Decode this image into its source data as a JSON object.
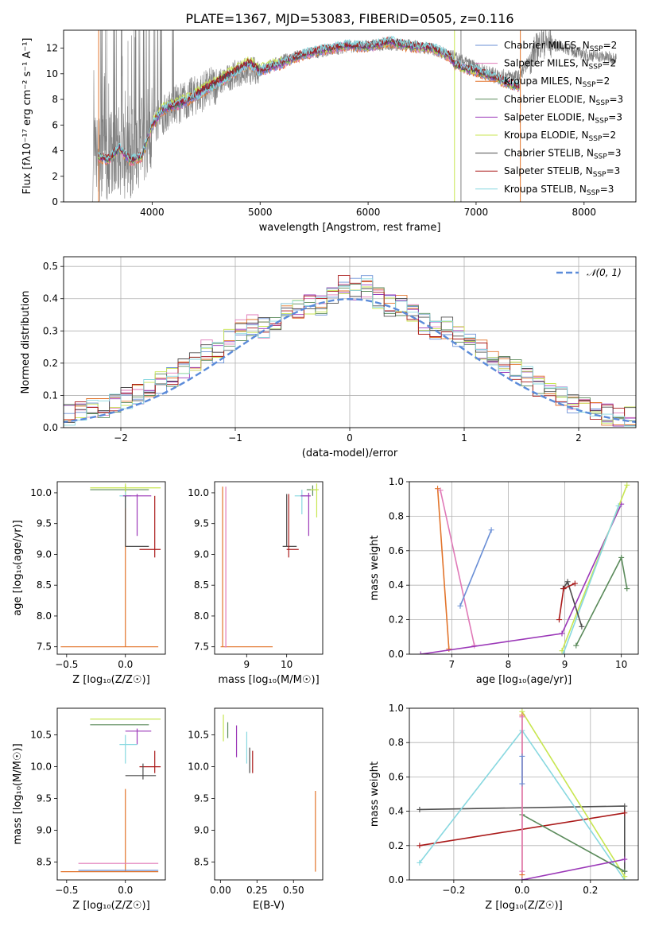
{
  "figure": {
    "suptitle": "PLATE=1367, MJD=53083, FIBERID=0505, z=0.116"
  },
  "colors": {
    "chabrier_miles": "#6a8fd6",
    "salpeter_miles": "#e07ab8",
    "kroupa_miles": "#e2742b",
    "chabrier_elodie": "#5a8a5a",
    "salpeter_elodie": "#9b38b8",
    "kroupa_elodie": "#c8e650",
    "chabrier_stelib": "#4d4d4d",
    "salpeter_stelib": "#aa1a1a",
    "kroupa_stelib": "#88d8e0",
    "data": "#808080",
    "normal": "#5b8bd9",
    "grid": "#b0b0b0"
  },
  "chart_data": [
    {
      "id": "spectrum",
      "type": "line",
      "xlabel": "wavelength [Angstrom, rest frame]",
      "ylabel": "Flux [fλ10⁻¹⁷ erg cm⁻² s⁻¹ A⁻¹]",
      "xlim": [
        3180,
        8480
      ],
      "ylim": [
        0,
        13.4
      ],
      "xticks": [
        4000,
        5000,
        6000,
        7000,
        8000
      ],
      "yticks": [
        0,
        2,
        4,
        6,
        8,
        10,
        12
      ],
      "grid": false,
      "legend_position": "top-right",
      "legend": [
        {
          "label": "Chabrier MILES, N",
          "sub": "SSP",
          "tail": "=2",
          "color_key": "chabrier_miles"
        },
        {
          "label": "Salpeter MILES, N",
          "sub": "SSP",
          "tail": "=2",
          "color_key": "salpeter_miles"
        },
        {
          "label": "Kroupa MILES, N",
          "sub": "SSP",
          "tail": "=2",
          "color_key": "kroupa_miles"
        },
        {
          "label": "Chabrier ELODIE, N",
          "sub": "SSP",
          "tail": "=3",
          "color_key": "chabrier_elodie"
        },
        {
          "label": "Salpeter ELODIE, N",
          "sub": "SSP",
          "tail": "=3",
          "color_key": "salpeter_elodie"
        },
        {
          "label": "Kroupa ELODIE, N",
          "sub": "SSP",
          "tail": "=2",
          "color_key": "kroupa_elodie"
        },
        {
          "label": "Chabrier STELIB, N",
          "sub": "SSP",
          "tail": "=3",
          "color_key": "chabrier_stelib"
        },
        {
          "label": "Salpeter STELIB, N",
          "sub": "SSP",
          "tail": "=3",
          "color_key": "salpeter_stelib"
        },
        {
          "label": "Kroupa STELIB, N",
          "sub": "SSP",
          "tail": "=3",
          "color_key": "kroupa_stelib"
        }
      ],
      "model_continuum": {
        "x": [
          3500,
          3600,
          3700,
          3800,
          3900,
          4000,
          4100,
          4300,
          4500,
          4700,
          4900,
          5000,
          5200,
          5400,
          5600,
          5800,
          6000,
          6200,
          6400,
          6600,
          6760,
          6800,
          6900,
          7000,
          7100,
          7200,
          7300,
          7400
        ],
        "y": [
          3.5,
          3.3,
          4.2,
          3.2,
          3.5,
          6.0,
          7.2,
          7.8,
          8.8,
          9.8,
          10.8,
          10.2,
          10.8,
          11.5,
          11.9,
          12.2,
          12.1,
          12.5,
          12.1,
          12.0,
          11.3,
          10.7,
          10.4,
          10.2,
          9.9,
          9.6,
          9.2,
          9.0
        ]
      },
      "data_continuum": {
        "x": [
          3450,
          3600,
          3800,
          4000,
          4200,
          4400,
          4600,
          4800,
          5000,
          5200,
          5400,
          5600,
          5800,
          6000,
          6200,
          6400,
          6600,
          6800,
          7000,
          7200,
          7400,
          7600,
          7800,
          8000,
          8200,
          8300
        ],
        "y": [
          3.5,
          3.6,
          3.6,
          6.0,
          7.5,
          8.3,
          9.2,
          10.1,
          10.3,
          11.0,
          11.5,
          11.8,
          12.1,
          12.2,
          12.3,
          12.2,
          11.9,
          11.3,
          10.5,
          9.9,
          9.8,
          12.5,
          12.1,
          11.5,
          11.3,
          11.2
        ]
      }
    },
    {
      "id": "residuals",
      "type": "line",
      "xlabel": "(data-model)/error",
      "ylabel": "Normed distribution",
      "xlim": [
        -2.5,
        2.5
      ],
      "ylim": [
        0,
        0.53
      ],
      "xticks": [
        -2,
        -1,
        0,
        1,
        2
      ],
      "yticks": [
        0.0,
        0.1,
        0.2,
        0.3,
        0.4,
        0.5
      ],
      "grid": true,
      "legend": [
        "𝒩(0, 1)"
      ],
      "legend_position": "top-right",
      "histogram_base": [
        0.02,
        0.02,
        0.03,
        0.04,
        0.05,
        0.06,
        0.06,
        0.08,
        0.09,
        0.1,
        0.12,
        0.14,
        0.16,
        0.18,
        0.2,
        0.24,
        0.23,
        0.27,
        0.3,
        0.32,
        0.31,
        0.33,
        0.36,
        0.37,
        0.38,
        0.38,
        0.42,
        0.45,
        0.43,
        0.44,
        0.4,
        0.38,
        0.38,
        0.35,
        0.32,
        0.3,
        0.31,
        0.28,
        0.27,
        0.24,
        0.22,
        0.2,
        0.18,
        0.16,
        0.13,
        0.11,
        0.1,
        0.08,
        0.07,
        0.05,
        0.04,
        0.03,
        0.03,
        0.02,
        0.02,
        0.02
      ],
      "normal_curve": {
        "mean": 0,
        "sigma": 1
      }
    },
    {
      "id": "age_vs_Z",
      "type": "scatter",
      "xlabel": "Z [log₁₀(Z/Z☉)]",
      "ylabel": "age  [log₁₀(age/yr)]",
      "xlim": [
        -0.58,
        0.34
      ],
      "ylim": [
        7.38,
        10.18
      ],
      "xticks": [
        -0.5,
        0.0
      ],
      "xticklabels": [
        "−0.5",
        "0.0"
      ],
      "yticks": [
        7.5,
        8.0,
        8.5,
        9.0,
        9.5,
        10.0
      ],
      "points": [
        {
          "c": "kroupa_miles",
          "x": 0.0,
          "y": 7.5,
          "xlo": -0.55,
          "xhi": 0.28,
          "ylo": 7.5,
          "yhi": 10.05
        },
        {
          "c": "chabrier_elodie",
          "x": 0.0,
          "y": 10.05,
          "xlo": -0.3,
          "xhi": 0.2,
          "ylo": 9.95,
          "yhi": 10.12
        },
        {
          "c": "kroupa_elodie",
          "x": 0.0,
          "y": 10.08,
          "xlo": -0.3,
          "xhi": 0.3,
          "ylo": 9.9,
          "yhi": 10.15
        },
        {
          "c": "kroupa_stelib",
          "x": 0.0,
          "y": 9.95,
          "xlo": -0.05,
          "xhi": 0.05,
          "ylo": 9.75,
          "yhi": 10.02
        },
        {
          "c": "salpeter_elodie",
          "x": 0.1,
          "y": 9.95,
          "xlo": -0.02,
          "xhi": 0.22,
          "ylo": 9.3,
          "yhi": 9.98
        },
        {
          "c": "chabrier_stelib",
          "x": 0.0,
          "y": 9.13,
          "xlo": 0.0,
          "xhi": 0.2,
          "ylo": 9.13,
          "yhi": 9.95
        },
        {
          "c": "salpeter_stelib",
          "x": 0.25,
          "y": 9.08,
          "xlo": 0.12,
          "xhi": 0.3,
          "ylo": 8.95,
          "yhi": 9.95
        }
      ]
    },
    {
      "id": "age_vs_mass",
      "type": "scatter",
      "xlabel": "mass [log₁₀(M/M☉)]",
      "xlim": [
        8.2,
        10.9
      ],
      "ylim": [
        7.38,
        10.18
      ],
      "xticks": [
        9,
        10
      ],
      "yticks": [
        7.5,
        8.0,
        8.5,
        9.0,
        9.5,
        10.0
      ],
      "points": [
        {
          "c": "kroupa_miles",
          "x": 8.4,
          "y": 7.5,
          "xlo": 8.35,
          "xhi": 9.65,
          "ylo": 7.5,
          "yhi": 10.1
        },
        {
          "c": "salpeter_miles",
          "x": 8.48,
          "y": 7.5,
          "xlo": 8.45,
          "xhi": 8.5,
          "ylo": 7.5,
          "yhi": 10.1
        },
        {
          "c": "chabrier_stelib",
          "x": 10.0,
          "y": 9.13,
          "xlo": 9.9,
          "xhi": 10.25,
          "ylo": 9.13,
          "yhi": 9.98
        },
        {
          "c": "salpeter_stelib",
          "x": 10.05,
          "y": 9.08,
          "xlo": 10.0,
          "xhi": 10.3,
          "ylo": 8.95,
          "yhi": 9.98
        },
        {
          "c": "kroupa_stelib",
          "x": 10.38,
          "y": 9.95,
          "xlo": 10.2,
          "xhi": 10.55,
          "ylo": 9.65,
          "yhi": 10.05
        },
        {
          "c": "salpeter_elodie",
          "x": 10.55,
          "y": 9.95,
          "xlo": 10.35,
          "xhi": 10.6,
          "ylo": 9.3,
          "yhi": 10.0
        },
        {
          "c": "chabrier_elodie",
          "x": 10.65,
          "y": 10.05,
          "xlo": 10.5,
          "xhi": 10.75,
          "ylo": 9.95,
          "yhi": 10.12
        },
        {
          "c": "kroupa_elodie",
          "x": 10.75,
          "y": 10.05,
          "xlo": 10.6,
          "xhi": 10.8,
          "ylo": 9.6,
          "yhi": 10.15
        }
      ]
    },
    {
      "id": "weight_vs_age",
      "type": "line",
      "xlabel": "age  [log₁₀(age/yr)]",
      "ylabel": "mass weight",
      "xlim": [
        6.25,
        10.3
      ],
      "ylim": [
        0,
        1
      ],
      "xticks": [
        7,
        8,
        9,
        10
      ],
      "yticks": [
        0.0,
        0.2,
        0.4,
        0.6,
        0.8,
        1.0
      ],
      "grid": true,
      "series": [
        {
          "c": "kroupa_miles",
          "x": [
            6.75,
            6.95
          ],
          "y": [
            0.96,
            0.03
          ]
        },
        {
          "c": "salpeter_miles",
          "x": [
            6.8,
            7.4
          ],
          "y": [
            0.95,
            0.05
          ]
        },
        {
          "c": "chabrier_miles",
          "x": [
            7.15,
            7.7
          ],
          "y": [
            0.28,
            0.72
          ]
        },
        {
          "c": "salpeter_elodie",
          "x": [
            6.45,
            8.95,
            10.0
          ],
          "y": [
            0.0,
            0.12,
            0.87
          ]
        },
        {
          "c": "kroupa_elodie",
          "x": [
            8.95,
            10.1
          ],
          "y": [
            0.02,
            0.98
          ]
        },
        {
          "c": "kroupa_stelib",
          "x": [
            8.97,
            9.95
          ],
          "y": [
            0.0,
            0.86
          ]
        },
        {
          "c": "chabrier_elodie",
          "x": [
            9.2,
            10.0,
            10.1
          ],
          "y": [
            0.05,
            0.56,
            0.38
          ]
        },
        {
          "c": "chabrier_stelib",
          "x": [
            8.97,
            9.05,
            9.3
          ],
          "y": [
            0.38,
            0.42,
            0.16
          ]
        },
        {
          "c": "salpeter_stelib",
          "x": [
            8.9,
            8.98,
            9.18
          ],
          "y": [
            0.2,
            0.38,
            0.41
          ]
        }
      ]
    },
    {
      "id": "mass_vs_Z",
      "type": "scatter",
      "xlabel": "Z [log₁₀(Z/Z☉)]",
      "ylabel": "mass [log₁₀(M/M☉)]",
      "xlim": [
        -0.58,
        0.34
      ],
      "ylim": [
        8.22,
        10.92
      ],
      "xticks": [
        -0.5,
        0.0
      ],
      "xticklabels": [
        "−0.5",
        "0.0"
      ],
      "yticks": [
        8.5,
        9.0,
        9.5,
        10.0,
        10.5
      ],
      "points": [
        {
          "c": "kroupa_miles",
          "x": 0.0,
          "y": 8.35,
          "xlo": -0.55,
          "xhi": 0.28,
          "ylo": 8.35,
          "yhi": 9.65
        },
        {
          "c": "chabrier_miles",
          "x": 0.0,
          "y": 8.37,
          "xlo": -0.4,
          "xhi": 0.28,
          "ylo": 8.37,
          "yhi": 8.37
        },
        {
          "c": "salpeter_miles",
          "x": 0.0,
          "y": 8.48,
          "xlo": -0.4,
          "xhi": 0.28,
          "ylo": 8.48,
          "yhi": 8.48
        },
        {
          "c": "kroupa_elodie",
          "x": 0.1,
          "y": 10.75,
          "xlo": -0.3,
          "xhi": 0.3,
          "ylo": 10.75,
          "yhi": 10.75
        },
        {
          "c": "chabrier_elodie",
          "x": 0.05,
          "y": 10.66,
          "xlo": -0.3,
          "xhi": 0.2,
          "ylo": 10.66,
          "yhi": 10.66
        },
        {
          "c": "salpeter_elodie",
          "x": 0.1,
          "y": 10.56,
          "xlo": 0.0,
          "xhi": 0.22,
          "ylo": 10.35,
          "yhi": 10.6
        },
        {
          "c": "kroupa_stelib",
          "x": 0.0,
          "y": 10.35,
          "xlo": -0.05,
          "xhi": 0.1,
          "ylo": 10.05,
          "yhi": 10.5
        },
        {
          "c": "salpeter_stelib",
          "x": 0.25,
          "y": 10.0,
          "xlo": 0.12,
          "xhi": 0.3,
          "ylo": 9.9,
          "yhi": 10.25
        },
        {
          "c": "chabrier_stelib",
          "x": 0.15,
          "y": 9.86,
          "xlo": 0.0,
          "xhi": 0.26,
          "ylo": 9.8,
          "yhi": 10.05
        }
      ]
    },
    {
      "id": "mass_vs_ebv",
      "type": "scatter",
      "xlabel": "E(B-V)",
      "xlim": [
        -0.04,
        0.7
      ],
      "ylim": [
        8.22,
        10.92
      ],
      "xticks": [
        0.0,
        0.25,
        0.5
      ],
      "xticklabels": [
        "0.00",
        "0.25",
        "0.50"
      ],
      "yticks": [
        8.5,
        9.0,
        9.5,
        10.0,
        10.5
      ],
      "points": [
        {
          "c": "kroupa_elodie",
          "x": 0.02,
          "y": 10.75,
          "xlo": 0.02,
          "xhi": 0.02,
          "ylo": 10.4,
          "yhi": 10.82
        },
        {
          "c": "chabrier_elodie",
          "x": 0.05,
          "y": 10.65,
          "xlo": 0.05,
          "xhi": 0.05,
          "ylo": 10.45,
          "yhi": 10.7
        },
        {
          "c": "salpeter_elodie",
          "x": 0.11,
          "y": 10.6,
          "xlo": 0.11,
          "xhi": 0.11,
          "ylo": 10.15,
          "yhi": 10.65
        },
        {
          "c": "kroupa_stelib",
          "x": 0.18,
          "y": 10.5,
          "xlo": 0.18,
          "xhi": 0.18,
          "ylo": 10.05,
          "yhi": 10.55
        },
        {
          "c": "chabrier_stelib",
          "x": 0.2,
          "y": 10.3,
          "xlo": 0.2,
          "xhi": 0.2,
          "ylo": 9.9,
          "yhi": 10.3
        },
        {
          "c": "salpeter_stelib",
          "x": 0.22,
          "y": 10.25,
          "xlo": 0.22,
          "xhi": 0.22,
          "ylo": 9.9,
          "yhi": 10.25
        },
        {
          "c": "kroupa_miles",
          "x": 0.65,
          "y": 8.35,
          "xlo": 0.65,
          "xhi": 0.65,
          "ylo": 8.35,
          "yhi": 9.62
        }
      ]
    },
    {
      "id": "weight_vs_Z",
      "type": "line",
      "xlabel": "Z [log₁₀(Z/Z☉)]",
      "ylabel": "mass weight",
      "xlim": [
        -0.33,
        0.34
      ],
      "ylim": [
        0,
        1
      ],
      "xticks": [
        -0.2,
        0.0,
        0.2
      ],
      "xticklabels": [
        "−0.2",
        "0.0",
        "0.2"
      ],
      "yticks": [
        0.0,
        0.2,
        0.4,
        0.6,
        0.8,
        1.0
      ],
      "grid": true,
      "series": [
        {
          "c": "chabrier_stelib",
          "x": [
            -0.3,
            0.3,
            0.3
          ],
          "y": [
            0.41,
            0.43,
            0.05
          ]
        },
        {
          "c": "salpeter_stelib",
          "x": [
            -0.3,
            0.3
          ],
          "y": [
            0.2,
            0.39
          ]
        },
        {
          "c": "kroupa_stelib",
          "x": [
            -0.3,
            0.0,
            0.3
          ],
          "y": [
            0.1,
            0.87,
            0.0
          ]
        },
        {
          "c": "kroupa_elodie",
          "x": [
            0.0,
            0.3
          ],
          "y": [
            0.98,
            0.02
          ]
        },
        {
          "c": "chabrier_elodie",
          "x": [
            0.0,
            0.3
          ],
          "y": [
            0.38,
            0.05
          ]
        },
        {
          "c": "salpeter_elodie",
          "x": [
            0.0,
            0.3
          ],
          "y": [
            0.0,
            0.12
          ]
        },
        {
          "c": "kroupa_miles",
          "x": [
            0.0,
            0.0
          ],
          "y": [
            0.96,
            0.03
          ]
        },
        {
          "c": "salpeter_miles",
          "x": [
            0.0,
            0.0
          ],
          "y": [
            0.95,
            0.05
          ]
        },
        {
          "c": "chabrier_miles",
          "x": [
            0.0,
            0.0
          ],
          "y": [
            0.72,
            0.56
          ]
        }
      ]
    }
  ]
}
